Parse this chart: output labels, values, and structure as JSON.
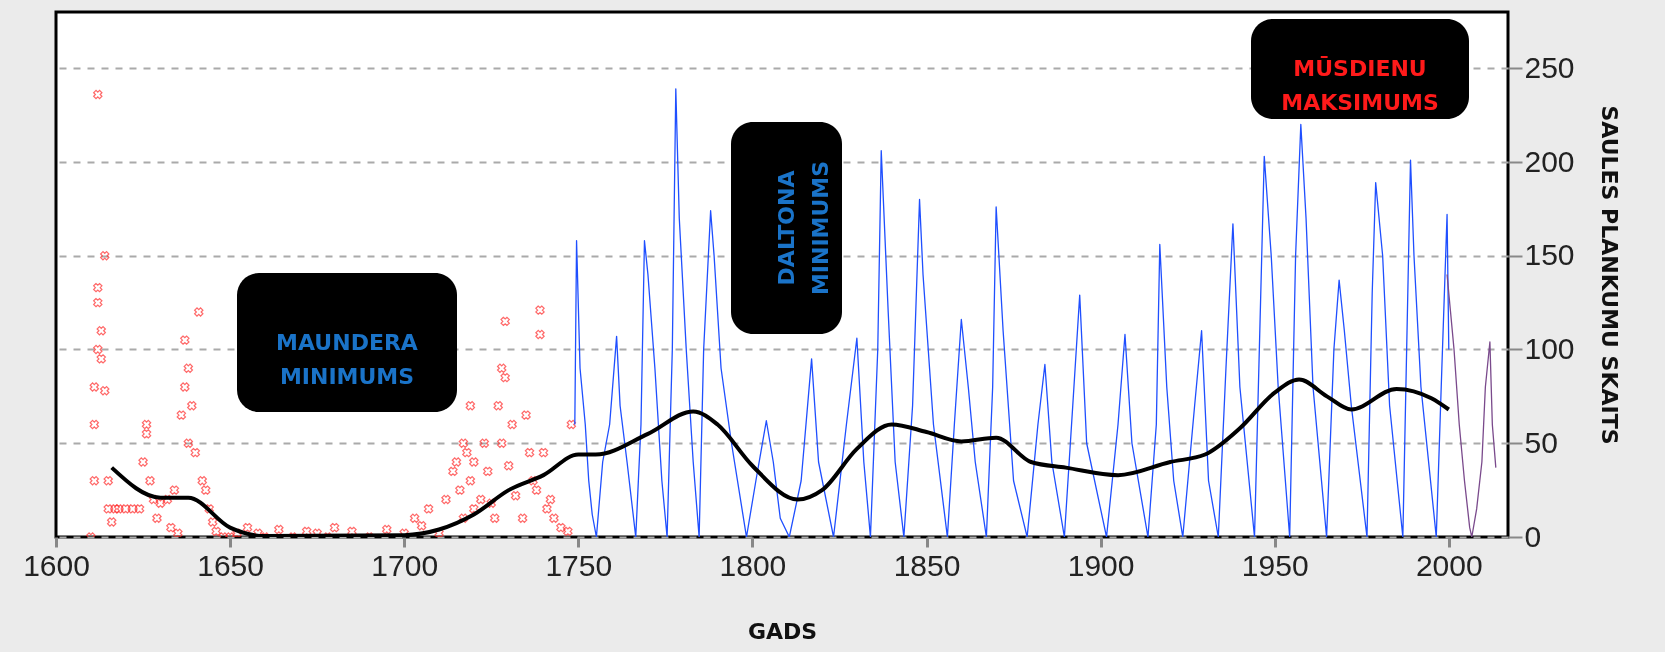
{
  "chart_data": {
    "type": "line",
    "xlabel": "GADS",
    "ylabel": "SAULES PLANKUMU SKAITS",
    "xlim": [
      1600,
      2017
    ],
    "ylim": [
      0,
      280
    ],
    "xticks": [
      1600,
      1650,
      1700,
      1750,
      1800,
      1850,
      1900,
      1950,
      2000
    ],
    "yticks": [
      0,
      50,
      100,
      150,
      200,
      250
    ],
    "grid": "y",
    "legend": false,
    "annotations": [
      "MAUNDERA MINIMUMS",
      "DALTONA MINIMUMS",
      "MŪSDIENU MAKSIMUMS"
    ],
    "series": [
      {
        "type": "scatter",
        "marker": "cross",
        "color": "#ff2a2a",
        "x": [
          1610,
          1611,
          1611,
          1611,
          1612,
          1612,
          1612,
          1612,
          1613,
          1613,
          1614,
          1614,
          1615,
          1615,
          1616,
          1617,
          1618,
          1620,
          1622,
          1624,
          1625,
          1626,
          1626,
          1627,
          1628,
          1629,
          1630,
          1632,
          1633,
          1634,
          1635,
          1636,
          1637,
          1637,
          1638,
          1638,
          1639,
          1640,
          1641,
          1642,
          1643,
          1644,
          1645,
          1646,
          1648,
          1650,
          1652,
          1655,
          1658,
          1660,
          1664,
          1668,
          1672,
          1675,
          1678,
          1680,
          1685,
          1690,
          1695,
          1700,
          1703,
          1705,
          1707,
          1710,
          1712,
          1714,
          1715,
          1716,
          1717,
          1717,
          1718,
          1719,
          1719,
          1720,
          1720,
          1722,
          1723,
          1724,
          1725,
          1726,
          1727,
          1728,
          1728,
          1729,
          1729,
          1730,
          1731,
          1732,
          1734,
          1735,
          1736,
          1737,
          1738,
          1739,
          1739,
          1740,
          1741,
          1742,
          1743,
          1745,
          1747,
          1748
        ],
        "values": [
          0,
          30,
          60,
          80,
          100,
          125,
          133,
          236,
          95,
          110,
          150,
          78,
          15,
          30,
          8,
          15,
          15,
          15,
          15,
          15,
          40,
          60,
          55,
          30,
          20,
          10,
          18,
          20,
          5,
          25,
          2,
          65,
          80,
          105,
          50,
          90,
          70,
          45,
          120,
          30,
          25,
          15,
          8,
          3,
          0,
          0,
          2,
          5,
          2,
          0,
          4,
          0,
          3,
          2,
          0,
          5,
          3,
          0,
          4,
          2,
          10,
          6,
          15,
          2,
          20,
          35,
          40,
          25,
          50,
          10,
          45,
          70,
          30,
          40,
          15,
          20,
          50,
          35,
          18,
          10,
          70,
          90,
          50,
          115,
          85,
          38,
          60,
          22,
          10,
          65,
          45,
          30,
          25,
          108,
          121,
          45,
          15,
          20,
          10,
          5,
          3,
          60
        ]
      },
      {
        "color": "#1f4fff",
        "x": [
          1749,
          1749.5,
          1750.5,
          1752,
          1753,
          1754,
          1755.2,
          1757,
          1759,
          1761,
          1762,
          1764,
          1766.5,
          1768,
          1769,
          1770,
          1772,
          1774,
          1775.5,
          1777,
          1778,
          1779,
          1781,
          1783,
          1784.7,
          1786,
          1788,
          1789,
          1791,
          1794,
          1798.3,
          1801,
          1804,
          1806,
          1808,
          1810.6,
          1814,
          1817,
          1819,
          1823.3,
          1827,
          1830,
          1832,
          1833.9,
          1836,
          1837,
          1839,
          1841,
          1843.5,
          1846,
          1848,
          1849,
          1852,
          1856,
          1858,
          1860,
          1862,
          1864,
          1867.2,
          1869,
          1870,
          1872,
          1875,
          1878.9,
          1882,
          1884,
          1886,
          1889.6,
          1892,
          1894,
          1896,
          1901.7,
          1905,
          1907,
          1909,
          1913.6,
          1916,
          1917,
          1919,
          1921,
          1923.6,
          1927,
          1929,
          1931,
          1933.8,
          1936,
          1938,
          1940,
          1944.2,
          1946,
          1947,
          1949,
          1951,
          1954.3,
          1956,
          1957.5,
          1959,
          1961,
          1964.9,
          1967,
          1968.5,
          1970,
          1972,
          1976.5,
          1978,
          1979,
          1981,
          1983,
          1986.8,
          1989,
          1990,
          1992,
          1996.4,
          1998,
          1999.5,
          2000
        ],
        "values": [
          60,
          158,
          90,
          60,
          30,
          12,
          0,
          40,
          60,
          107,
          70,
          40,
          0,
          60,
          158,
          140,
          90,
          30,
          0,
          100,
          239,
          170,
          100,
          40,
          0,
          100,
          174,
          150,
          90,
          50,
          0,
          30,
          62,
          40,
          10,
          0,
          30,
          95,
          40,
          0,
          60,
          106,
          40,
          0,
          100,
          206,
          120,
          40,
          0,
          70,
          180,
          140,
          60,
          0,
          60,
          116,
          80,
          40,
          0,
          80,
          176,
          110,
          30,
          0,
          60,
          92,
          40,
          0,
          70,
          129,
          50,
          0,
          60,
          108,
          50,
          0,
          60,
          156,
          80,
          30,
          0,
          70,
          110,
          30,
          0,
          90,
          167,
          80,
          0,
          130,
          203,
          150,
          80,
          0,
          150,
          220,
          170,
          80,
          0,
          100,
          137,
          110,
          70,
          0,
          130,
          189,
          150,
          70,
          0,
          201,
          150,
          80,
          0,
          90,
          172,
          100
        ]
      },
      {
        "color": "#7a4a8c",
        "x": [
          1999.5,
          2000.5,
          2001.5,
          2003,
          2004.5,
          2006,
          2006.6,
          2008,
          2009.5,
          2010.5,
          2011.8,
          2012.5,
          2013.5
        ],
        "values": [
          140,
          120,
          100,
          60,
          30,
          5,
          0,
          15,
          40,
          80,
          104,
          60,
          37
        ]
      },
      {
        "color": "#000000",
        "x": [
          1616,
          1630,
          1638,
          1650,
          1660,
          1700,
          1710,
          1720,
          1730,
          1740,
          1750,
          1755,
          1770,
          1783,
          1790,
          1800,
          1813,
          1820,
          1830,
          1840,
          1850,
          1860,
          1870,
          1880,
          1890,
          1905,
          1920,
          1930,
          1940,
          1950,
          1957,
          1965,
          1972,
          1985,
          1995,
          2000
        ],
        "values": [
          37,
          21,
          21,
          5,
          0.5,
          1,
          4,
          12,
          25,
          33,
          44,
          44,
          55,
          67,
          60,
          38,
          20,
          25,
          47,
          60,
          56,
          51,
          53,
          40,
          37,
          33,
          40,
          44,
          58,
          77,
          84,
          75,
          68,
          79,
          74,
          68
        ]
      }
    ]
  }
}
